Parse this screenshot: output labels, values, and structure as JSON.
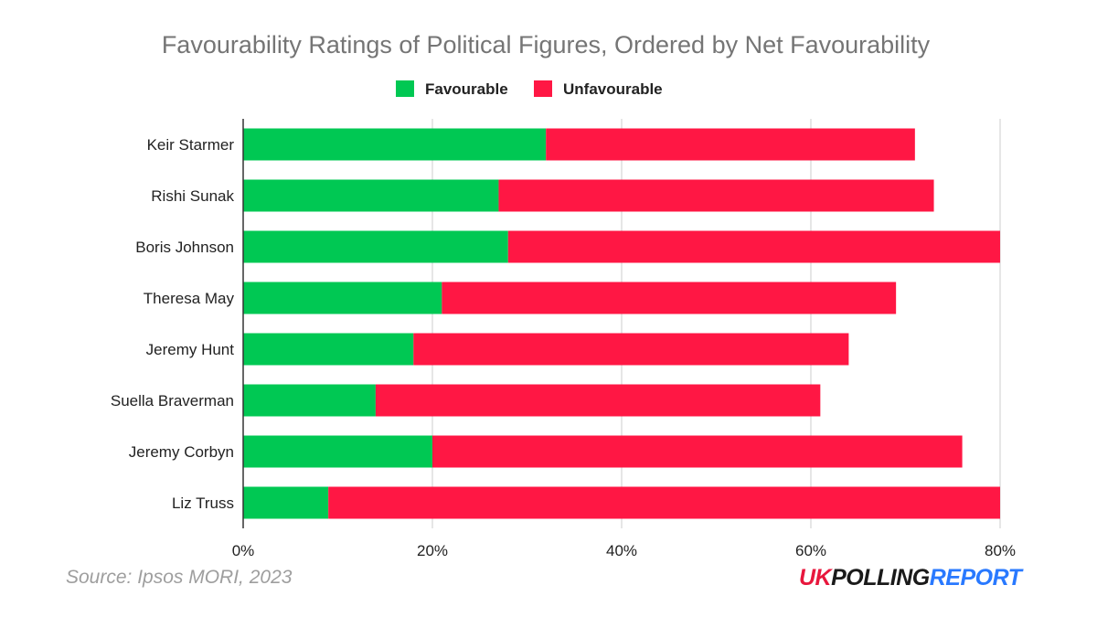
{
  "chart_data": {
    "type": "bar",
    "orientation": "horizontal",
    "stacked": true,
    "title": "Favourability Ratings of Political Figures, Ordered by Net Favourability",
    "categories": [
      "Keir Starmer",
      "Rishi Sunak",
      "Boris Johnson",
      "Theresa May",
      "Jeremy Hunt",
      "Suella Braverman",
      "Jeremy Corbyn",
      "Liz Truss"
    ],
    "series": [
      {
        "name": "Favourable",
        "color": "#00c853",
        "values": [
          32,
          27,
          28,
          21,
          18,
          14,
          20,
          9
        ]
      },
      {
        "name": "Unfavourable",
        "color": "#ff1744",
        "values": [
          39,
          46,
          52,
          48,
          46,
          47,
          56,
          71
        ]
      }
    ],
    "xlim": [
      0,
      80
    ],
    "xticks": [
      0,
      20,
      40,
      60,
      80
    ],
    "xtick_labels": [
      "0%",
      "20%",
      "40%",
      "60%",
      "80%"
    ],
    "grid": true,
    "legend_position": "top-center"
  },
  "source": "Source: Ipsos MORI, 2023",
  "logo": {
    "part1": "UK",
    "part2": "POLLING",
    "part3": "REPORT",
    "color_red": "#e8173d",
    "color_dark": "#1a1a1a",
    "color_blue": "#2979ff"
  }
}
